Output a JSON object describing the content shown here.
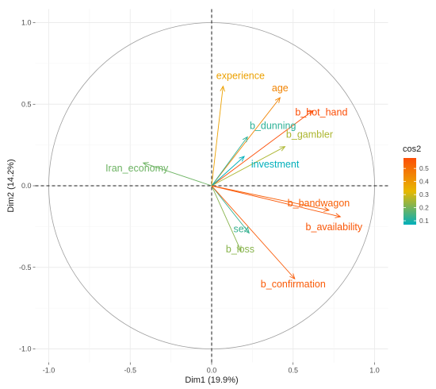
{
  "chart_data": {
    "type": "scatter",
    "subtype": "pca-variable-correlation-circle",
    "title": "",
    "xlabel": "Dim1 (19.9%)",
    "ylabel": "Dim2 (14.2%)",
    "xlim": [
      -1.0,
      1.0
    ],
    "ylim": [
      -1.0,
      1.0
    ],
    "x_ticks": [
      "-1.0",
      "-0.5",
      "0.0",
      "0.5",
      "1.0"
    ],
    "y_ticks": [
      "-1.0",
      "-0.5",
      "0.0",
      "0.5",
      "1.0"
    ],
    "grid": true,
    "unit_circle": true,
    "reference_lines": "dashed at x=0 and y=0",
    "color_scale": {
      "name": "cos2",
      "ticks": [
        "0.1",
        "0.2",
        "0.3",
        "0.4",
        "0.5"
      ],
      "tick_values": [
        0.1,
        0.2,
        0.3,
        0.4,
        0.5
      ],
      "range": [
        0.07,
        0.58
      ],
      "colors": [
        "#00AFBB",
        "#E7B800",
        "#FC4E07"
      ],
      "placement": "right"
    },
    "variables": [
      {
        "name": "experience",
        "x": 0.07,
        "y": 0.61,
        "cos2": 0.38
      },
      {
        "name": "age",
        "x": 0.42,
        "y": 0.54,
        "cos2": 0.45
      },
      {
        "name": "b_hot_hand",
        "x": 0.62,
        "y": 0.46,
        "cos2": 0.58
      },
      {
        "name": "b_dunning",
        "x": 0.22,
        "y": 0.3,
        "cos2": 0.12
      },
      {
        "name": "b_gambler",
        "x": 0.45,
        "y": 0.24,
        "cos2": 0.26
      },
      {
        "name": "Iran_economy",
        "x": -0.42,
        "y": 0.14,
        "cos2": 0.19
      },
      {
        "name": "investment",
        "x": 0.2,
        "y": 0.18,
        "cos2": 0.07
      },
      {
        "name": "b_bandwagon",
        "x": 0.72,
        "y": -0.15,
        "cos2": 0.54
      },
      {
        "name": "b_availability",
        "x": 0.79,
        "y": -0.19,
        "cos2": 0.56
      },
      {
        "name": "sex",
        "x": 0.23,
        "y": -0.29,
        "cos2": 0.13
      },
      {
        "name": "b_loss",
        "x": 0.18,
        "y": -0.4,
        "cos2": 0.22
      },
      {
        "name": "b_confirmation",
        "x": 0.51,
        "y": -0.57,
        "cos2": 0.55
      }
    ]
  }
}
